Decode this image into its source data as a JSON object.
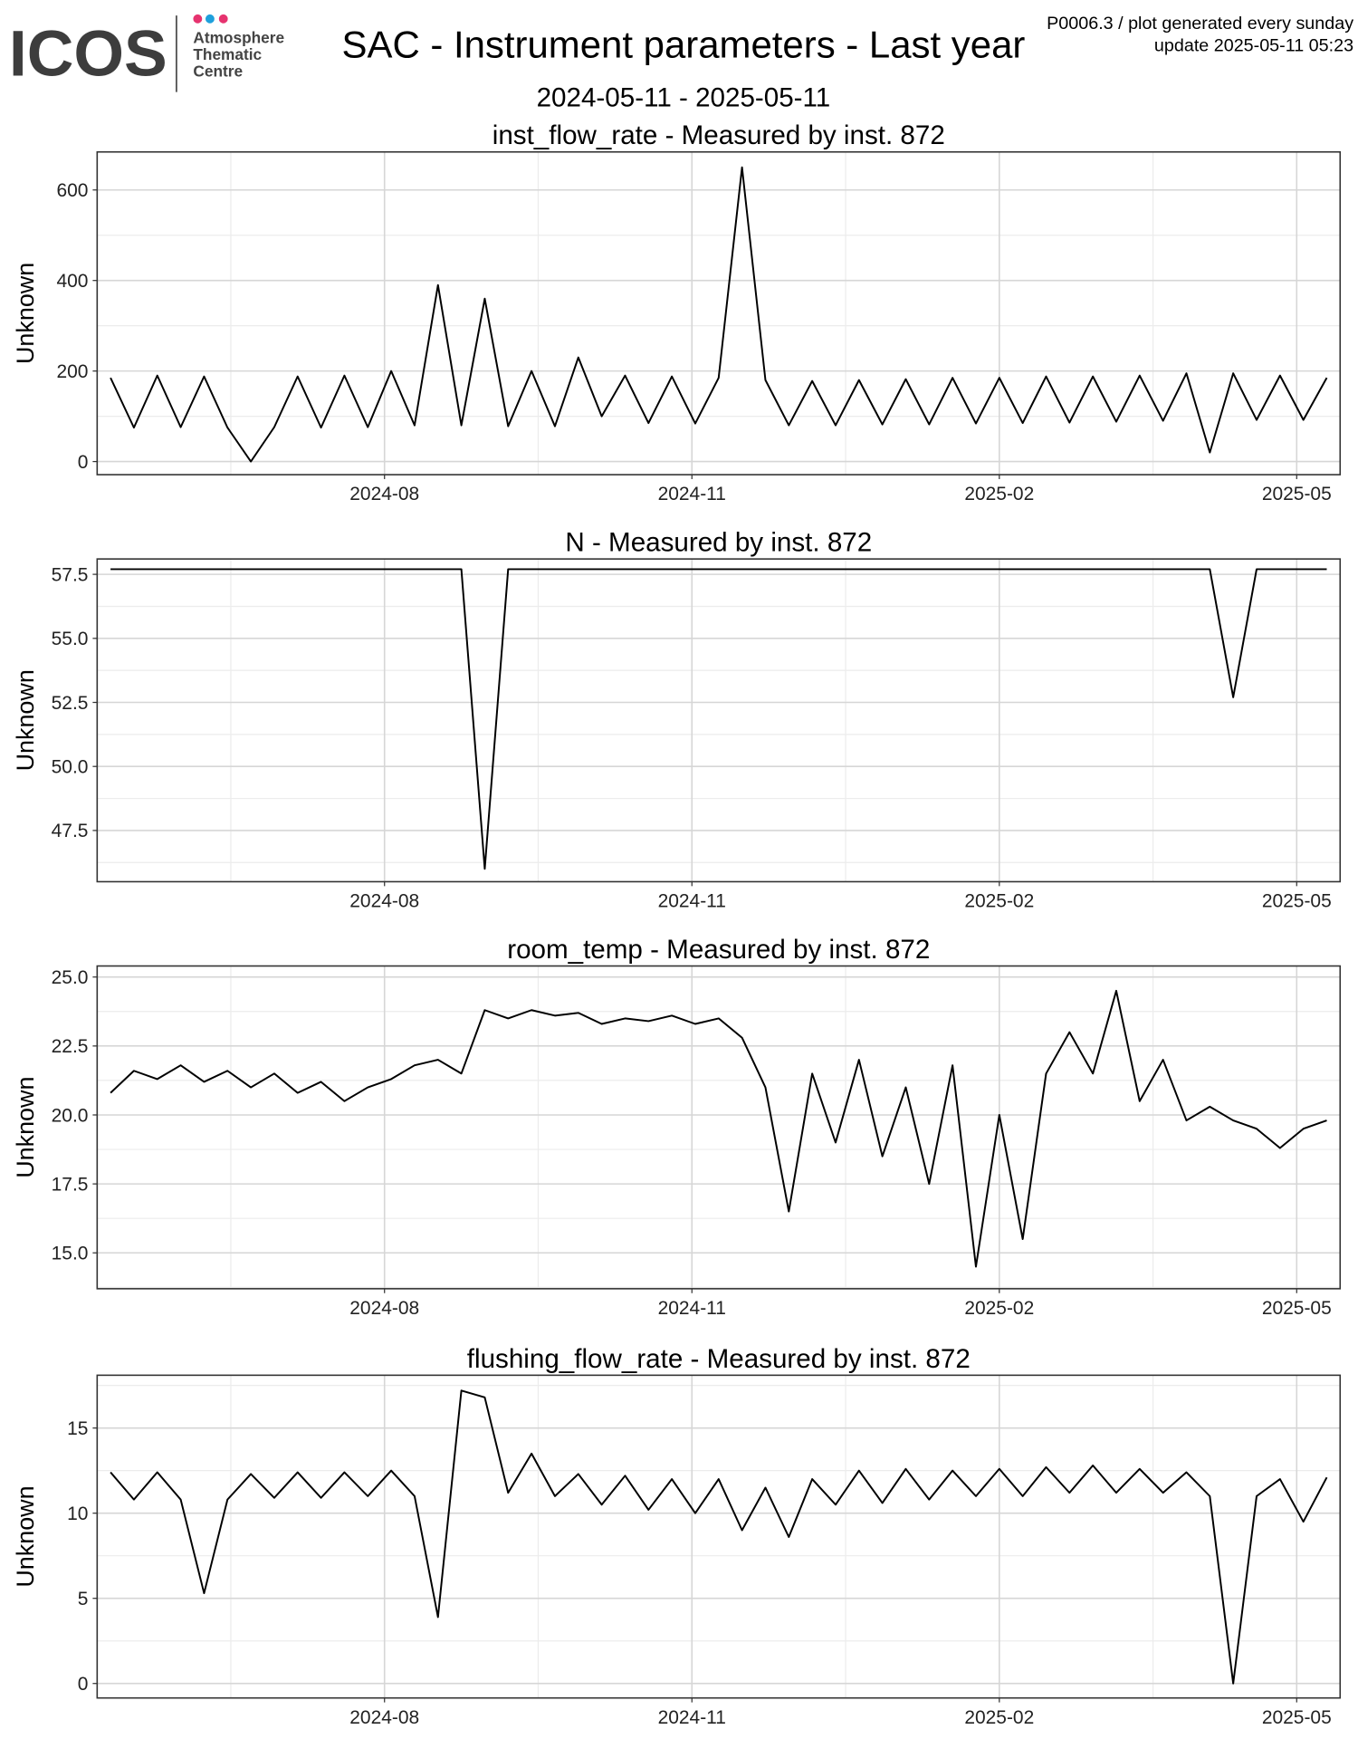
{
  "header": {
    "logo": "ICOS",
    "logo_lines": [
      "Atmosphere",
      "Thematic",
      "Centre"
    ],
    "title": "SAC - Instrument parameters - Last year",
    "subtitle": "2024-05-11 - 2025-05-11",
    "note": "P0006.3 / plot generated every sunday",
    "update": "update  2025-05-11 05:23"
  },
  "chart_data": [
    {
      "type": "line",
      "title": "inst_flow_rate - Measured by inst. 872",
      "y_label": "Unknown",
      "color": "#000000",
      "grid": true,
      "xlim": [
        "2024-05-07",
        "2025-05-14"
      ],
      "xticks": [
        {
          "value": "2024-08-01",
          "label": "2024-08"
        },
        {
          "value": "2024-11-01",
          "label": "2024-11"
        },
        {
          "value": "2025-02-01",
          "label": "2025-02"
        },
        {
          "value": "2025-05-01",
          "label": "2025-05"
        }
      ],
      "ylim": [
        -29,
        684
      ],
      "yticks": [
        0,
        200,
        400,
        600
      ],
      "x": [
        "2024-05-11",
        "2024-05-18",
        "2024-05-25",
        "2024-06-01",
        "2024-06-08",
        "2024-06-15",
        "2024-06-22",
        "2024-06-29",
        "2024-07-06",
        "2024-07-13",
        "2024-07-20",
        "2024-07-27",
        "2024-08-03",
        "2024-08-10",
        "2024-08-17",
        "2024-08-24",
        "2024-08-31",
        "2024-09-07",
        "2024-09-14",
        "2024-09-21",
        "2024-09-28",
        "2024-10-05",
        "2024-10-12",
        "2024-10-19",
        "2024-10-26",
        "2024-11-02",
        "2024-11-09",
        "2024-11-16",
        "2024-11-23",
        "2024-11-30",
        "2024-12-07",
        "2024-12-14",
        "2024-12-21",
        "2024-12-28",
        "2025-01-04",
        "2025-01-11",
        "2025-01-18",
        "2025-01-25",
        "2025-02-01",
        "2025-02-08",
        "2025-02-15",
        "2025-02-22",
        "2025-03-01",
        "2025-03-08",
        "2025-03-15",
        "2025-03-22",
        "2025-03-29",
        "2025-04-05",
        "2025-04-12",
        "2025-04-19",
        "2025-04-26",
        "2025-05-03",
        "2025-05-10"
      ],
      "values": [
        185,
        75,
        190,
        76,
        188,
        75,
        0,
        76,
        188,
        75,
        190,
        76,
        200,
        80,
        390,
        80,
        360,
        78,
        200,
        78,
        230,
        100,
        190,
        85,
        188,
        84,
        185,
        650,
        180,
        80,
        178,
        80,
        180,
        82,
        182,
        82,
        185,
        84,
        185,
        85,
        188,
        86,
        188,
        88,
        190,
        90,
        195,
        20,
        195,
        92,
        190,
        92,
        185
      ]
    },
    {
      "type": "line",
      "title": "N - Measured by inst. 872",
      "y_label": "Unknown",
      "color": "#000000",
      "grid": true,
      "xlim": [
        "2024-05-07",
        "2025-05-14"
      ],
      "xticks": [
        {
          "value": "2024-08-01",
          "label": "2024-08"
        },
        {
          "value": "2024-11-01",
          "label": "2024-11"
        },
        {
          "value": "2025-02-01",
          "label": "2025-02"
        },
        {
          "value": "2025-05-01",
          "label": "2025-05"
        }
      ],
      "ylim": [
        45.5,
        58.1
      ],
      "yticks": [
        47.5,
        {
          "value": 50,
          "label": "50.0"
        },
        52.5,
        {
          "value": 55,
          "label": "55.0"
        },
        57.5
      ],
      "x": [
        "2024-05-11",
        "2024-05-18",
        "2024-05-25",
        "2024-06-01",
        "2024-06-08",
        "2024-06-15",
        "2024-06-22",
        "2024-06-29",
        "2024-07-06",
        "2024-07-13",
        "2024-07-20",
        "2024-07-27",
        "2024-08-03",
        "2024-08-10",
        "2024-08-17",
        "2024-08-24",
        "2024-08-31",
        "2024-09-07",
        "2024-09-14",
        "2024-09-21",
        "2024-09-28",
        "2024-10-05",
        "2024-10-12",
        "2024-10-19",
        "2024-10-26",
        "2024-11-02",
        "2024-11-09",
        "2024-11-16",
        "2024-11-23",
        "2024-11-30",
        "2024-12-07",
        "2024-12-14",
        "2024-12-21",
        "2024-12-28",
        "2025-01-04",
        "2025-01-11",
        "2025-01-18",
        "2025-01-25",
        "2025-02-01",
        "2025-02-08",
        "2025-02-15",
        "2025-02-22",
        "2025-03-01",
        "2025-03-08",
        "2025-03-15",
        "2025-03-22",
        "2025-03-29",
        "2025-04-05",
        "2025-04-12",
        "2025-04-19",
        "2025-04-26",
        "2025-05-03",
        "2025-05-10"
      ],
      "values": [
        57.7,
        57.7,
        57.7,
        57.7,
        57.7,
        57.7,
        57.7,
        57.7,
        57.7,
        57.7,
        57.7,
        57.7,
        57.7,
        57.7,
        57.7,
        57.7,
        46.0,
        57.7,
        57.7,
        57.7,
        57.7,
        57.7,
        57.7,
        57.7,
        57.7,
        57.7,
        57.7,
        57.7,
        57.7,
        57.7,
        57.7,
        57.7,
        57.7,
        57.7,
        57.7,
        57.7,
        57.7,
        57.7,
        57.7,
        57.7,
        57.7,
        57.7,
        57.7,
        57.7,
        57.7,
        57.7,
        57.7,
        57.7,
        52.7,
        57.7,
        57.7,
        57.7,
        57.7
      ]
    },
    {
      "type": "line",
      "title": "room_temp - Measured by inst. 872",
      "y_label": "Unknown",
      "color": "#000000",
      "grid": true,
      "xlim": [
        "2024-05-07",
        "2025-05-14"
      ],
      "xticks": [
        {
          "value": "2024-08-01",
          "label": "2024-08"
        },
        {
          "value": "2024-11-01",
          "label": "2024-11"
        },
        {
          "value": "2025-02-01",
          "label": "2025-02"
        },
        {
          "value": "2025-05-01",
          "label": "2025-05"
        }
      ],
      "ylim": [
        13.7,
        25.4
      ],
      "yticks": [
        {
          "value": 15,
          "label": "15.0"
        },
        17.5,
        {
          "value": 20,
          "label": "20.0"
        },
        22.5,
        {
          "value": 25,
          "label": "25.0"
        }
      ],
      "x": [
        "2024-05-11",
        "2024-05-18",
        "2024-05-25",
        "2024-06-01",
        "2024-06-08",
        "2024-06-15",
        "2024-06-22",
        "2024-06-29",
        "2024-07-06",
        "2024-07-13",
        "2024-07-20",
        "2024-07-27",
        "2024-08-03",
        "2024-08-10",
        "2024-08-17",
        "2024-08-24",
        "2024-08-31",
        "2024-09-07",
        "2024-09-14",
        "2024-09-21",
        "2024-09-28",
        "2024-10-05",
        "2024-10-12",
        "2024-10-19",
        "2024-10-26",
        "2024-11-02",
        "2024-11-09",
        "2024-11-16",
        "2024-11-23",
        "2024-11-30",
        "2024-12-07",
        "2024-12-14",
        "2024-12-21",
        "2024-12-28",
        "2025-01-04",
        "2025-01-11",
        "2025-01-18",
        "2025-01-25",
        "2025-02-01",
        "2025-02-08",
        "2025-02-15",
        "2025-02-22",
        "2025-03-01",
        "2025-03-08",
        "2025-03-15",
        "2025-03-22",
        "2025-03-29",
        "2025-04-05",
        "2025-04-12",
        "2025-04-19",
        "2025-04-26",
        "2025-05-03",
        "2025-05-10"
      ],
      "values": [
        20.8,
        21.6,
        21.3,
        21.8,
        21.2,
        21.6,
        21.0,
        21.5,
        20.8,
        21.2,
        20.5,
        21.0,
        21.3,
        21.8,
        22.0,
        21.5,
        23.8,
        23.5,
        23.8,
        23.6,
        23.7,
        23.3,
        23.5,
        23.4,
        23.6,
        23.3,
        23.5,
        22.8,
        21.0,
        16.5,
        21.5,
        19.0,
        22.0,
        18.5,
        21.0,
        17.5,
        21.8,
        14.5,
        20.0,
        15.5,
        21.5,
        23.0,
        21.5,
        24.5,
        20.5,
        22.0,
        19.8,
        20.3,
        19.8,
        19.5,
        18.8,
        19.5,
        19.8
      ]
    },
    {
      "type": "line",
      "title": "flushing_flow_rate - Measured by inst. 872",
      "y_label": "Unknown",
      "color": "#000000",
      "grid": true,
      "xlim": [
        "2024-05-07",
        "2025-05-14"
      ],
      "xticks": [
        {
          "value": "2024-08-01",
          "label": "2024-08"
        },
        {
          "value": "2024-11-01",
          "label": "2024-11"
        },
        {
          "value": "2025-02-01",
          "label": "2025-02"
        },
        {
          "value": "2025-05-01",
          "label": "2025-05"
        }
      ],
      "ylim": [
        -0.85,
        18.1
      ],
      "yticks": [
        0,
        5,
        10,
        15
      ],
      "x": [
        "2024-05-11",
        "2024-05-18",
        "2024-05-25",
        "2024-06-01",
        "2024-06-08",
        "2024-06-15",
        "2024-06-22",
        "2024-06-29",
        "2024-07-06",
        "2024-07-13",
        "2024-07-20",
        "2024-07-27",
        "2024-08-03",
        "2024-08-10",
        "2024-08-17",
        "2024-08-24",
        "2024-08-31",
        "2024-09-07",
        "2024-09-14",
        "2024-09-21",
        "2024-09-28",
        "2024-10-05",
        "2024-10-12",
        "2024-10-19",
        "2024-10-26",
        "2024-11-02",
        "2024-11-09",
        "2024-11-16",
        "2024-11-23",
        "2024-11-30",
        "2024-12-07",
        "2024-12-14",
        "2024-12-21",
        "2024-12-28",
        "2025-01-04",
        "2025-01-11",
        "2025-01-18",
        "2025-01-25",
        "2025-02-01",
        "2025-02-08",
        "2025-02-15",
        "2025-02-22",
        "2025-03-01",
        "2025-03-08",
        "2025-03-15",
        "2025-03-22",
        "2025-03-29",
        "2025-04-05",
        "2025-04-12",
        "2025-04-19",
        "2025-04-26",
        "2025-05-03",
        "2025-05-10"
      ],
      "values": [
        12.4,
        10.8,
        12.4,
        10.8,
        5.3,
        10.8,
        12.3,
        10.9,
        12.4,
        10.9,
        12.4,
        11.0,
        12.5,
        11.0,
        3.9,
        17.2,
        16.8,
        11.2,
        13.5,
        11.0,
        12.3,
        10.5,
        12.2,
        10.2,
        12.0,
        10.0,
        12.0,
        9.0,
        11.5,
        8.6,
        12.0,
        10.5,
        12.5,
        10.6,
        12.6,
        10.8,
        12.5,
        11.0,
        12.6,
        11.0,
        12.7,
        11.2,
        12.8,
        11.2,
        12.6,
        11.2,
        12.4,
        11.0,
        0,
        11.0,
        12.0,
        9.5,
        12.1
      ]
    }
  ]
}
